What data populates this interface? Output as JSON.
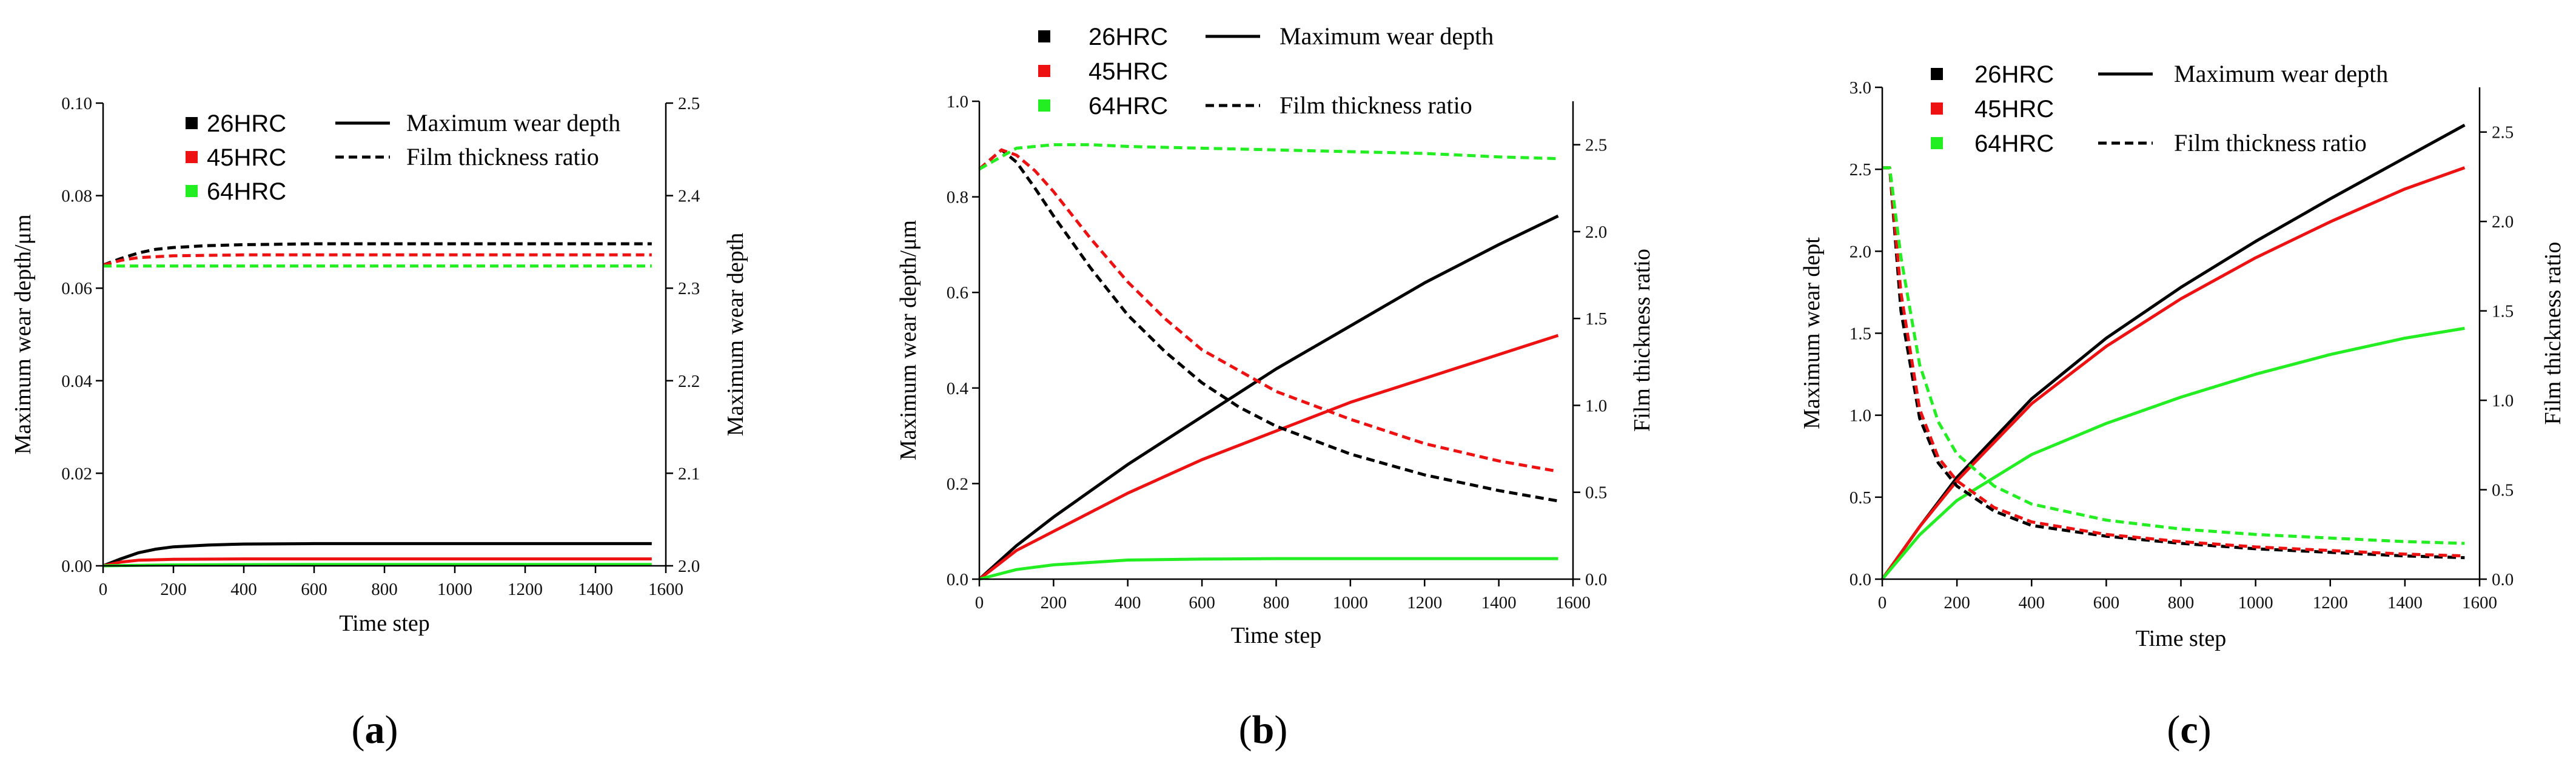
{
  "colors": {
    "hrc26": "#000000",
    "hrc45": "#ee1111",
    "hrc64": "#22ee22",
    "axis": "#000000",
    "background": "#ffffff"
  },
  "chart_data": [
    {
      "id": "a",
      "type": "line",
      "panel_label": "a",
      "xlabel": "Time step",
      "ylabel": "Maximum wear depth/μm",
      "y2label": "Maximum wear depth",
      "xlim": [
        0,
        1600
      ],
      "ylim": [
        0,
        0.1
      ],
      "y2lim": [
        2.0,
        2.5
      ],
      "xticks": [
        0,
        200,
        400,
        600,
        800,
        1000,
        1200,
        1400,
        1600
      ],
      "yticks": [
        0.0,
        0.02,
        0.04,
        0.06,
        0.08,
        0.1
      ],
      "ytick_labels": [
        "0.00",
        "0.02",
        "0.04",
        "0.06",
        "0.08",
        "0.10"
      ],
      "y2ticks": [
        2.0,
        2.1,
        2.2,
        2.3,
        2.4,
        2.5
      ],
      "y2tick_labels": [
        "2.0",
        "2.1",
        "2.2",
        "2.3",
        "2.4",
        "2.5"
      ],
      "legend": {
        "markers": [
          {
            "label": "26HRC",
            "color": "hrc26"
          },
          {
            "label": "45HRC",
            "color": "hrc45"
          },
          {
            "label": "64HRC",
            "color": "hrc64"
          }
        ],
        "styles": [
          {
            "label": "Maximum wear depth",
            "dash": false
          },
          {
            "label": "Film thickness ratio",
            "dash": true
          }
        ]
      },
      "series": [
        {
          "name": "26HRC Maximum wear depth",
          "color": "hrc26",
          "axis": "left",
          "dash": false,
          "x": [
            0,
            50,
            100,
            150,
            200,
            300,
            400,
            600,
            800,
            1000,
            1200,
            1400,
            1560
          ],
          "y": [
            0,
            0.0015,
            0.0028,
            0.0036,
            0.0041,
            0.0045,
            0.0047,
            0.0048,
            0.0048,
            0.0048,
            0.0048,
            0.0048,
            0.0048
          ]
        },
        {
          "name": "45HRC Maximum wear depth",
          "color": "hrc45",
          "axis": "left",
          "dash": false,
          "x": [
            0,
            50,
            100,
            200,
            400,
            800,
            1200,
            1560
          ],
          "y": [
            0,
            0.0008,
            0.0012,
            0.0014,
            0.0015,
            0.0015,
            0.0015,
            0.0015
          ]
        },
        {
          "name": "64HRC Maximum wear depth",
          "color": "hrc64",
          "axis": "left",
          "dash": false,
          "x": [
            0,
            200,
            600,
            1000,
            1560
          ],
          "y": [
            0,
            0.0002,
            0.0003,
            0.0003,
            0.0003
          ]
        },
        {
          "name": "26HRC Film thickness ratio",
          "color": "hrc26",
          "axis": "right",
          "dash": true,
          "x": [
            0,
            50,
            100,
            150,
            200,
            300,
            400,
            600,
            800,
            1000,
            1200,
            1400,
            1560
          ],
          "y": [
            2.325,
            2.332,
            2.338,
            2.342,
            2.344,
            2.346,
            2.347,
            2.348,
            2.348,
            2.348,
            2.348,
            2.348,
            2.348
          ]
        },
        {
          "name": "45HRC Film thickness ratio",
          "color": "hrc45",
          "axis": "right",
          "dash": true,
          "x": [
            0,
            50,
            100,
            200,
            400,
            800,
            1200,
            1560
          ],
          "y": [
            2.325,
            2.33,
            2.333,
            2.335,
            2.336,
            2.336,
            2.336,
            2.336
          ]
        },
        {
          "name": "64HRC Film thickness ratio",
          "color": "hrc64",
          "axis": "right",
          "dash": true,
          "x": [
            0,
            400,
            800,
            1200,
            1560
          ],
          "y": [
            2.324,
            2.324,
            2.324,
            2.324,
            2.324
          ]
        }
      ]
    },
    {
      "id": "b",
      "type": "line",
      "panel_label": "b",
      "xlabel": "Time step",
      "ylabel": "Maximum wear depth/μm",
      "y2label": "Film thickness ratio",
      "xlim": [
        0,
        1600
      ],
      "ylim": [
        0,
        1.0
      ],
      "y2lim": [
        0,
        2.75
      ],
      "xticks": [
        0,
        200,
        400,
        600,
        800,
        1000,
        1200,
        1400,
        1600
      ],
      "yticks": [
        0,
        0.2,
        0.4,
        0.6,
        0.8,
        1.0
      ],
      "ytick_labels": [
        "0.0",
        "0.2",
        "0.4",
        "0.6",
        "0.8",
        "1.0"
      ],
      "y2ticks": [
        0,
        0.5,
        1.0,
        1.5,
        2.0,
        2.5
      ],
      "y2tick_labels": [
        "0.0",
        "0.5",
        "1.0",
        "1.5",
        "2.0",
        "2.5"
      ],
      "legend": {
        "markers": [
          {
            "label": "26HRC",
            "color": "hrc26"
          },
          {
            "label": "45HRC",
            "color": "hrc45"
          },
          {
            "label": "64HRC",
            "color": "hrc64"
          }
        ],
        "styles": [
          {
            "label": "Maximum wear depth",
            "dash": false
          },
          {
            "label": "Film thickness ratio",
            "dash": true
          }
        ]
      },
      "series": [
        {
          "name": "26HRC Maximum wear depth",
          "color": "hrc26",
          "axis": "left",
          "dash": false,
          "x": [
            0,
            100,
            200,
            400,
            600,
            800,
            1000,
            1200,
            1400,
            1560
          ],
          "y": [
            0,
            0.07,
            0.13,
            0.24,
            0.34,
            0.44,
            0.53,
            0.62,
            0.7,
            0.76
          ]
        },
        {
          "name": "45HRC Maximum wear depth",
          "color": "hrc45",
          "axis": "left",
          "dash": false,
          "x": [
            0,
            100,
            200,
            400,
            600,
            800,
            1000,
            1200,
            1400,
            1560
          ],
          "y": [
            0,
            0.06,
            0.1,
            0.18,
            0.25,
            0.31,
            0.37,
            0.42,
            0.47,
            0.51
          ]
        },
        {
          "name": "64HRC Maximum wear depth",
          "color": "hrc64",
          "axis": "left",
          "dash": false,
          "x": [
            0,
            100,
            200,
            400,
            600,
            800,
            1000,
            1200,
            1400,
            1560
          ],
          "y": [
            0,
            0.02,
            0.03,
            0.04,
            0.042,
            0.043,
            0.043,
            0.043,
            0.043,
            0.043
          ]
        },
        {
          "name": "26HRC Film thickness ratio",
          "color": "hrc26",
          "axis": "right",
          "dash": true,
          "x": [
            0,
            60,
            100,
            150,
            200,
            300,
            400,
            500,
            600,
            700,
            800,
            1000,
            1200,
            1400,
            1560
          ],
          "y": [
            2.36,
            2.47,
            2.4,
            2.25,
            2.09,
            1.79,
            1.52,
            1.31,
            1.13,
            0.99,
            0.88,
            0.72,
            0.6,
            0.51,
            0.45
          ]
        },
        {
          "name": "45HRC Film thickness ratio",
          "color": "hrc45",
          "axis": "right",
          "dash": true,
          "x": [
            0,
            60,
            100,
            150,
            200,
            300,
            400,
            500,
            600,
            800,
            1000,
            1200,
            1400,
            1560
          ],
          "y": [
            2.36,
            2.47,
            2.44,
            2.35,
            2.23,
            1.96,
            1.71,
            1.5,
            1.32,
            1.08,
            0.92,
            0.78,
            0.68,
            0.62
          ]
        },
        {
          "name": "64HRC Film thickness ratio",
          "color": "hrc64",
          "axis": "right",
          "dash": true,
          "x": [
            0,
            100,
            200,
            300,
            400,
            600,
            800,
            1000,
            1200,
            1400,
            1560
          ],
          "y": [
            2.36,
            2.48,
            2.5,
            2.5,
            2.49,
            2.48,
            2.47,
            2.46,
            2.45,
            2.43,
            2.42
          ]
        }
      ]
    },
    {
      "id": "c",
      "type": "line",
      "panel_label": "c",
      "xlabel": "Time step",
      "ylabel": "Maximum wear dept",
      "y2label": "Film thickness ratio",
      "xlim": [
        0,
        1600
      ],
      "ylim": [
        0,
        3.0
      ],
      "y2lim": [
        0,
        2.75
      ],
      "xticks": [
        0,
        200,
        400,
        600,
        800,
        1000,
        1200,
        1400,
        1600
      ],
      "yticks": [
        0,
        0.5,
        1.0,
        1.5,
        2.0,
        2.5,
        3.0
      ],
      "ytick_labels": [
        "0.0",
        "0.5",
        "1.0",
        "1.5",
        "2.0",
        "2.5",
        "3.0"
      ],
      "y2ticks": [
        0,
        0.5,
        1.0,
        1.5,
        2.0,
        2.5
      ],
      "y2tick_labels": [
        "0.0",
        "0.5",
        "1.0",
        "1.5",
        "2.0",
        "2.5"
      ],
      "legend": {
        "markers": [
          {
            "label": "26HRC",
            "color": "hrc26"
          },
          {
            "label": "45HRC",
            "color": "hrc45"
          },
          {
            "label": "64HRC",
            "color": "hrc64"
          }
        ],
        "styles": [
          {
            "label": "Maximum wear depth",
            "dash": false
          },
          {
            "label": "Film thickness ratio",
            "dash": true
          }
        ]
      },
      "series": [
        {
          "name": "26HRC Maximum wear depth",
          "color": "hrc26",
          "axis": "left",
          "dash": false,
          "x": [
            0,
            100,
            200,
            400,
            600,
            800,
            1000,
            1200,
            1400,
            1560
          ],
          "y": [
            0,
            0.32,
            0.62,
            1.1,
            1.47,
            1.78,
            2.06,
            2.32,
            2.57,
            2.77
          ]
        },
        {
          "name": "45HRC Maximum wear depth",
          "color": "hrc45",
          "axis": "left",
          "dash": false,
          "x": [
            0,
            100,
            200,
            400,
            600,
            800,
            1000,
            1200,
            1400,
            1560
          ],
          "y": [
            0,
            0.32,
            0.6,
            1.07,
            1.42,
            1.71,
            1.96,
            2.18,
            2.38,
            2.51
          ]
        },
        {
          "name": "64HRC Maximum wear depth",
          "color": "hrc64",
          "axis": "left",
          "dash": false,
          "x": [
            0,
            100,
            200,
            400,
            600,
            800,
            1000,
            1200,
            1400,
            1560
          ],
          "y": [
            0,
            0.27,
            0.48,
            0.76,
            0.95,
            1.11,
            1.25,
            1.37,
            1.47,
            1.53
          ]
        },
        {
          "name": "26HRC Film thickness ratio",
          "color": "hrc26",
          "axis": "right",
          "dash": true,
          "x": [
            0,
            20,
            50,
            100,
            150,
            200,
            300,
            400,
            600,
            800,
            1000,
            1200,
            1400,
            1560
          ],
          "y": [
            2.3,
            2.3,
            1.5,
            0.9,
            0.65,
            0.52,
            0.38,
            0.3,
            0.24,
            0.2,
            0.17,
            0.15,
            0.13,
            0.12
          ]
        },
        {
          "name": "45HRC Film thickness ratio",
          "color": "hrc45",
          "axis": "right",
          "dash": true,
          "x": [
            0,
            20,
            50,
            100,
            150,
            200,
            300,
            400,
            600,
            800,
            1000,
            1200,
            1400,
            1560
          ],
          "y": [
            2.3,
            2.3,
            1.6,
            0.95,
            0.68,
            0.55,
            0.4,
            0.32,
            0.25,
            0.21,
            0.18,
            0.16,
            0.14,
            0.13
          ]
        },
        {
          "name": "64HRC Film thickness ratio",
          "color": "hrc64",
          "axis": "right",
          "dash": true,
          "x": [
            0,
            20,
            50,
            100,
            150,
            200,
            300,
            400,
            600,
            800,
            1000,
            1200,
            1400,
            1560
          ],
          "y": [
            2.3,
            2.3,
            1.8,
            1.2,
            0.88,
            0.7,
            0.52,
            0.42,
            0.33,
            0.28,
            0.25,
            0.23,
            0.21,
            0.2
          ]
        }
      ]
    }
  ]
}
